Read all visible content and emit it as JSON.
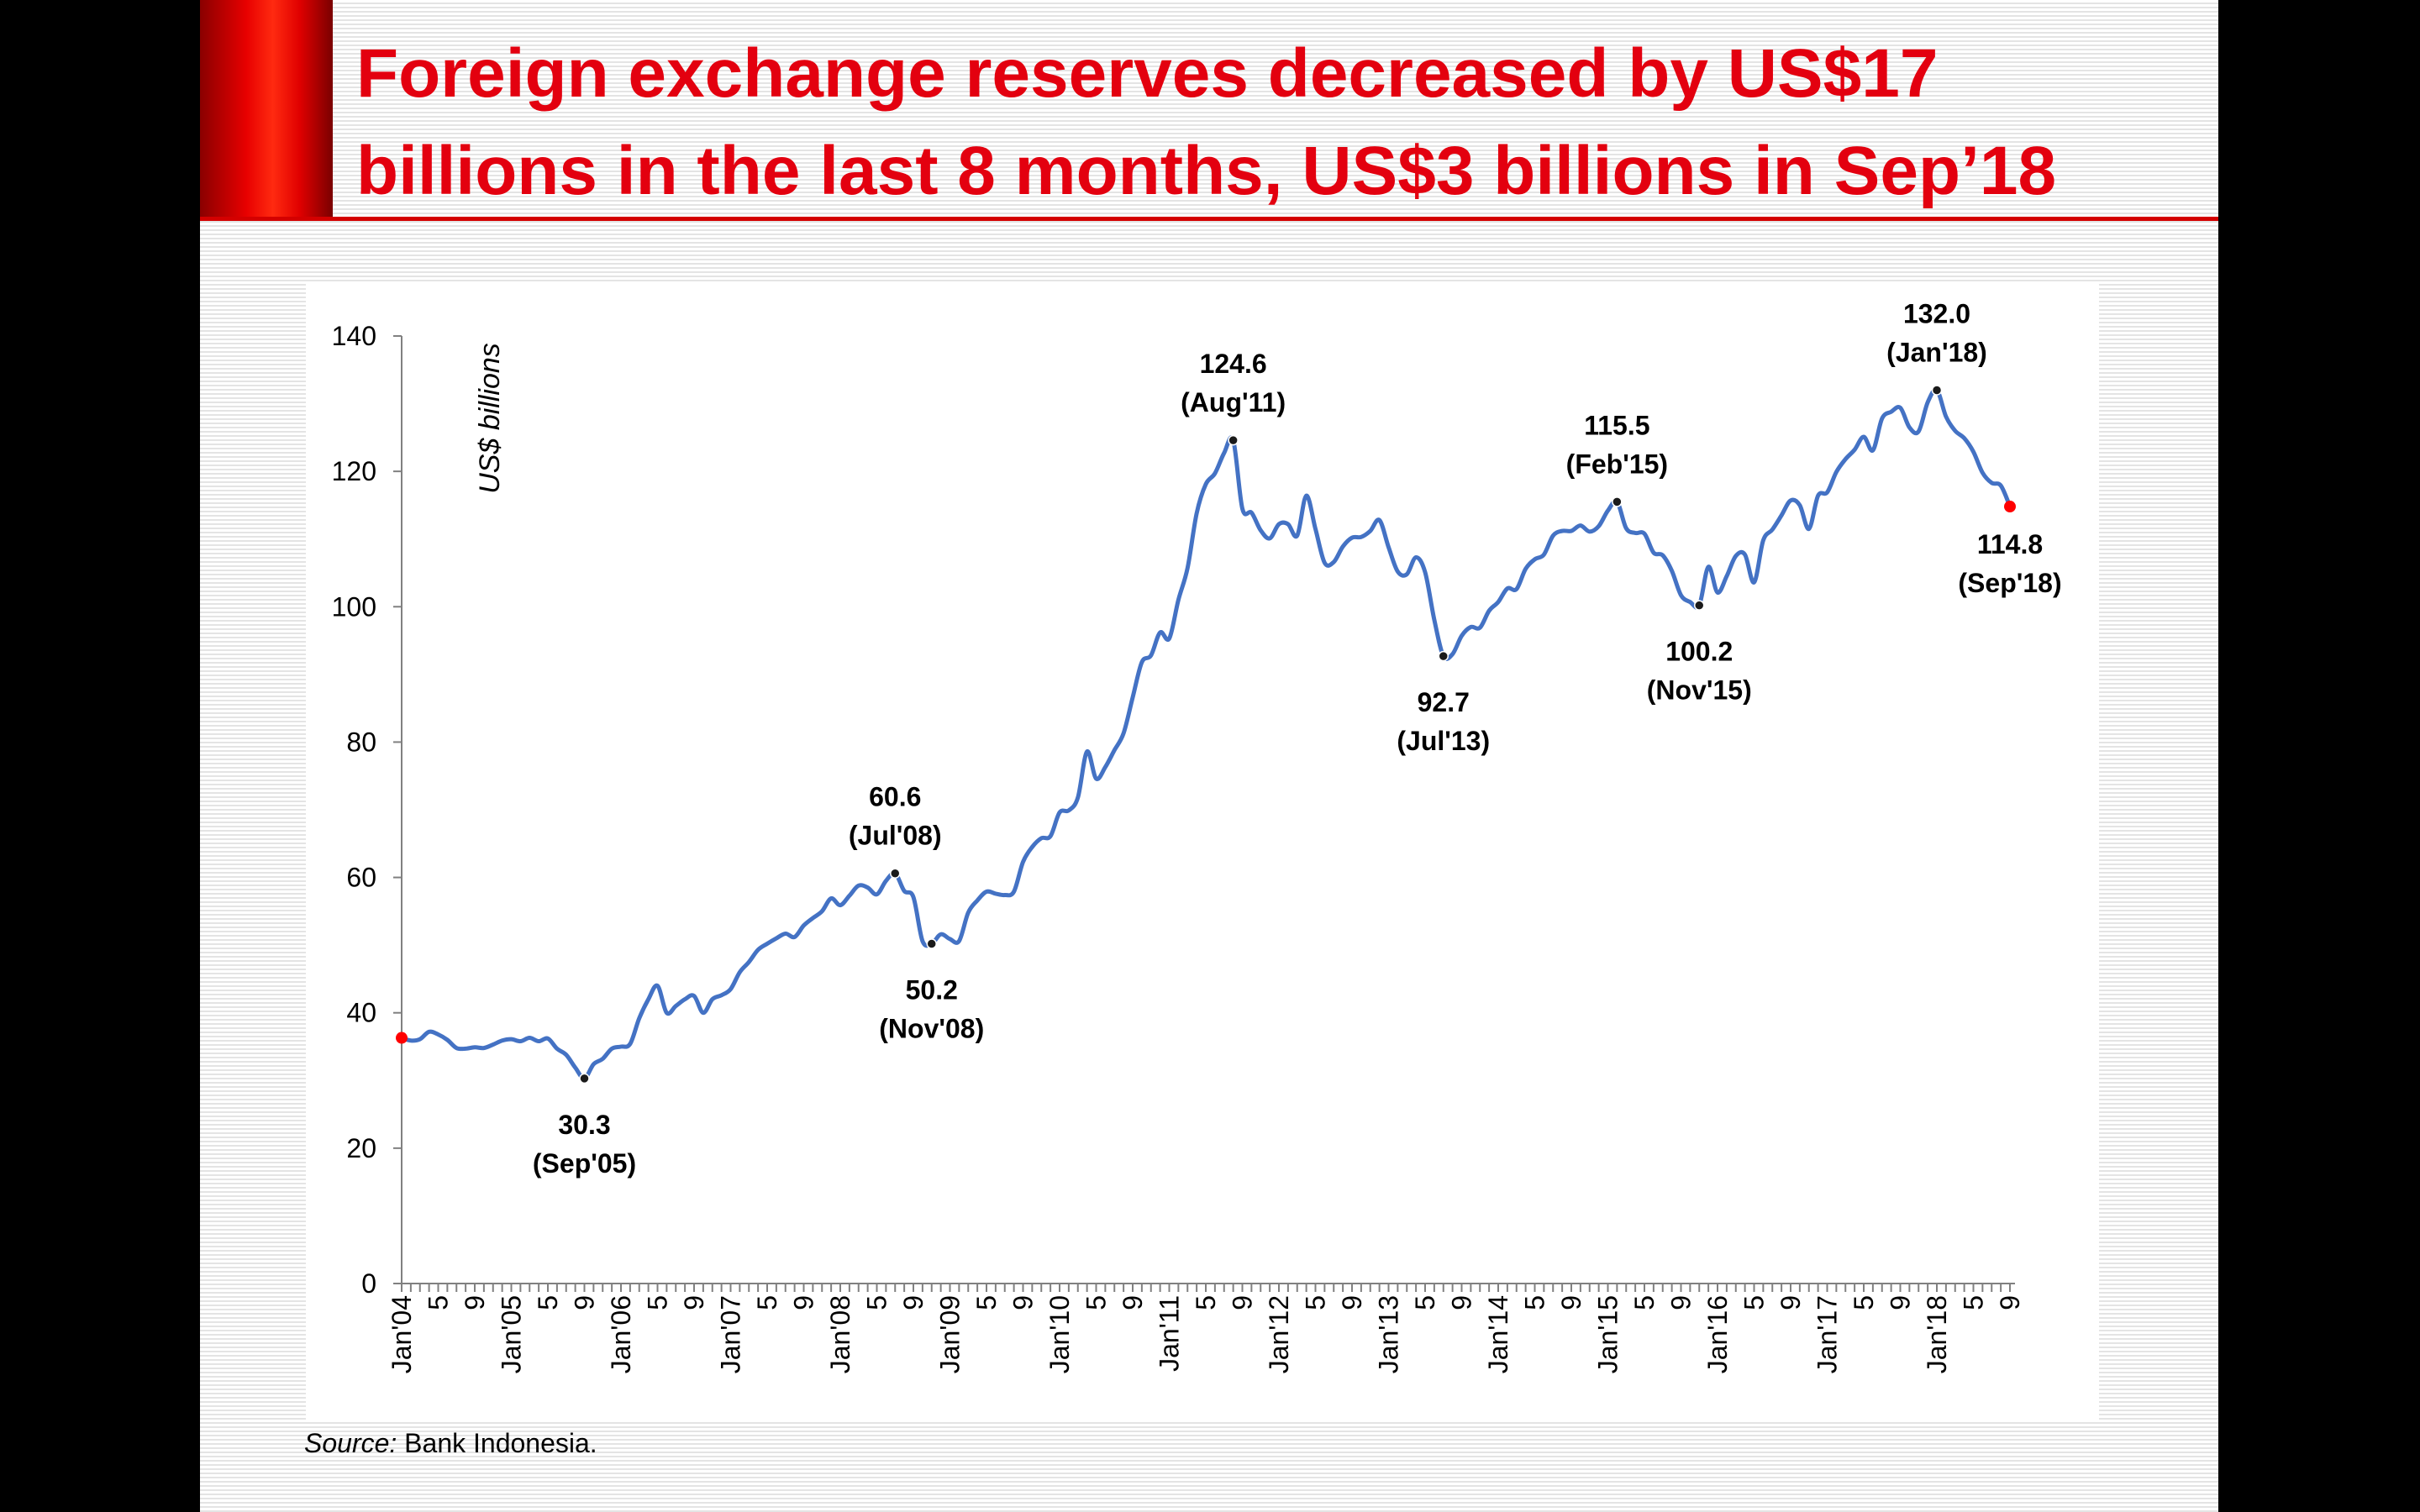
{
  "slide": {
    "title_line1": "Foreign exchange reserves decreased by US$17",
    "title_line2": "billions in the last 8 months, US$3 billions in Sep’18",
    "source_label": "Source:",
    "source_text": " Bank Indonesia."
  },
  "colors": {
    "title": "#e3000f",
    "line": "#4472c4",
    "marker": "#1a1a1a",
    "endpoint": "#ff0000"
  },
  "chart_data": {
    "type": "line",
    "title": "",
    "xlabel": "",
    "ylabel": "US$ billions",
    "ylim": [
      0,
      140
    ],
    "yticks": [
      0,
      20,
      40,
      60,
      80,
      100,
      120,
      140
    ],
    "start": "2004-01",
    "end": "2018-09",
    "x_tick_labels": [
      "Jan'04",
      "5",
      "9",
      "Jan'05",
      "5",
      "9",
      "Jan'06",
      "5",
      "9",
      "Jan'07",
      "5",
      "9",
      "Jan'08",
      "5",
      "9",
      "Jan'09",
      "5",
      "9",
      "Jan'10",
      "5",
      "9",
      "Jan'11",
      "5",
      "9",
      "Jan'12",
      "5",
      "9",
      "Jan'13",
      "5",
      "9",
      "Jan'14",
      "5",
      "9",
      "Jan'15",
      "5",
      "9",
      "Jan'16",
      "5",
      "9",
      "Jan'17",
      "5",
      "9",
      "Jan'18",
      "5",
      "9"
    ],
    "series": [
      {
        "name": "Foreign exchange reserves",
        "x": [
          "2004-01",
          "2004-02",
          "2004-03",
          "2004-04",
          "2004-05",
          "2004-06",
          "2004-07",
          "2004-08",
          "2004-09",
          "2004-10",
          "2004-11",
          "2004-12",
          "2005-01",
          "2005-02",
          "2005-03",
          "2005-04",
          "2005-05",
          "2005-06",
          "2005-07",
          "2005-08",
          "2005-09",
          "2005-10",
          "2005-11",
          "2005-12",
          "2006-01",
          "2006-02",
          "2006-03",
          "2006-04",
          "2006-05",
          "2006-06",
          "2006-07",
          "2006-08",
          "2006-09",
          "2006-10",
          "2006-11",
          "2006-12",
          "2007-01",
          "2007-02",
          "2007-03",
          "2007-04",
          "2007-05",
          "2007-06",
          "2007-07",
          "2007-08",
          "2007-09",
          "2007-10",
          "2007-11",
          "2007-12",
          "2008-01",
          "2008-02",
          "2008-03",
          "2008-04",
          "2008-05",
          "2008-06",
          "2008-07",
          "2008-08",
          "2008-09",
          "2008-10",
          "2008-11",
          "2008-12",
          "2009-01",
          "2009-02",
          "2009-03",
          "2009-04",
          "2009-05",
          "2009-06",
          "2009-07",
          "2009-08",
          "2009-09",
          "2009-10",
          "2009-11",
          "2009-12",
          "2010-01",
          "2010-02",
          "2010-03",
          "2010-04",
          "2010-05",
          "2010-06",
          "2010-07",
          "2010-08",
          "2010-09",
          "2010-10",
          "2010-11",
          "2010-12",
          "2011-01",
          "2011-02",
          "2011-03",
          "2011-04",
          "2011-05",
          "2011-06",
          "2011-07",
          "2011-08",
          "2011-09",
          "2011-10",
          "2011-11",
          "2011-12",
          "2012-01",
          "2012-02",
          "2012-03",
          "2012-04",
          "2012-05",
          "2012-06",
          "2012-07",
          "2012-08",
          "2012-09",
          "2012-10",
          "2012-11",
          "2012-12",
          "2013-01",
          "2013-02",
          "2013-03",
          "2013-04",
          "2013-05",
          "2013-06",
          "2013-07",
          "2013-08",
          "2013-09",
          "2013-10",
          "2013-11",
          "2013-12",
          "2014-01",
          "2014-02",
          "2014-03",
          "2014-04",
          "2014-05",
          "2014-06",
          "2014-07",
          "2014-08",
          "2014-09",
          "2014-10",
          "2014-11",
          "2014-12",
          "2015-01",
          "2015-02",
          "2015-03",
          "2015-04",
          "2015-05",
          "2015-06",
          "2015-07",
          "2015-08",
          "2015-09",
          "2015-10",
          "2015-11",
          "2015-12",
          "2016-01",
          "2016-02",
          "2016-03",
          "2016-04",
          "2016-05",
          "2016-06",
          "2016-07",
          "2016-08",
          "2016-09",
          "2016-10",
          "2016-11",
          "2016-12",
          "2017-01",
          "2017-02",
          "2017-03",
          "2017-04",
          "2017-05",
          "2017-06",
          "2017-07",
          "2017-08",
          "2017-09",
          "2017-10",
          "2017-11",
          "2017-12",
          "2018-01",
          "2018-02",
          "2018-03",
          "2018-04",
          "2018-05",
          "2018-06",
          "2018-07",
          "2018-08",
          "2018-09"
        ],
        "values": [
          36.3,
          35.9,
          36.1,
          37.2,
          36.8,
          36.0,
          34.8,
          34.7,
          34.9,
          34.8,
          35.3,
          35.9,
          36.1,
          35.8,
          36.3,
          35.8,
          36.2,
          34.7,
          33.8,
          31.9,
          30.3,
          32.4,
          33.2,
          34.7,
          35.0,
          35.4,
          39.2,
          42.0,
          44.0,
          40.0,
          41.0,
          42.0,
          42.5,
          40.0,
          42.0,
          42.6,
          43.5,
          46.0,
          47.5,
          49.3,
          50.2,
          51.0,
          51.7,
          51.2,
          52.9,
          54.0,
          55.0,
          56.9,
          55.9,
          57.3,
          58.8,
          58.5,
          57.5,
          59.5,
          60.6,
          58.0,
          57.1,
          50.6,
          50.2,
          51.6,
          50.9,
          50.6,
          54.8,
          56.6,
          57.9,
          57.6,
          57.4,
          57.9,
          62.3,
          64.5,
          65.8,
          66.1,
          69.6,
          69.9,
          71.8,
          78.6,
          74.6,
          76.3,
          78.8,
          81.3,
          86.6,
          91.8,
          92.8,
          96.2,
          95.3,
          101.0,
          105.7,
          113.8,
          118.1,
          119.7,
          122.7,
          124.6,
          114.5,
          113.9,
          111.3,
          110.1,
          112.2,
          112.2,
          110.5,
          116.4,
          111.5,
          106.5,
          106.6,
          108.9,
          110.2,
          110.3,
          111.2,
          112.8,
          108.8,
          105.2,
          104.8,
          107.3,
          105.1,
          98.1,
          92.7,
          93.0,
          95.7,
          97.0,
          96.9,
          99.4,
          100.7,
          102.7,
          102.6,
          105.6,
          107.0,
          107.7,
          110.5,
          111.2,
          111.2,
          112.0,
          111.1,
          111.9,
          114.2,
          115.5,
          111.6,
          110.9,
          110.8,
          108.0,
          107.6,
          105.3,
          101.7,
          100.7,
          100.2,
          105.9,
          102.1,
          104.5,
          107.5,
          107.7,
          103.6,
          109.8,
          111.4,
          113.5,
          115.7,
          115.0,
          111.5,
          116.4,
          116.9,
          119.9,
          121.8,
          123.2,
          125.1,
          123.1,
          127.8,
          128.8,
          129.4,
          126.5,
          125.9,
          130.2,
          132.0,
          128.1,
          126.0,
          124.9,
          122.9,
          119.8,
          118.3,
          117.9,
          114.8
        ]
      }
    ],
    "annotations": [
      {
        "x": "2005-09",
        "value": "30.3",
        "label": "(Sep'05)",
        "placement": "below"
      },
      {
        "x": "2008-07",
        "value": "60.6",
        "label": "(Jul'08)",
        "placement": "above"
      },
      {
        "x": "2008-11",
        "value": "50.2",
        "label": "(Nov'08)",
        "placement": "below"
      },
      {
        "x": "2011-08",
        "value": "124.6",
        "label": "(Aug'11)",
        "placement": "above"
      },
      {
        "x": "2013-07",
        "value": "92.7",
        "label": "(Jul'13)",
        "placement": "below"
      },
      {
        "x": "2015-02",
        "value": "115.5",
        "label": "(Feb'15)",
        "placement": "above"
      },
      {
        "x": "2015-11",
        "value": "100.2",
        "label": "(Nov'15)",
        "placement": "below"
      },
      {
        "x": "2018-01",
        "value": "132.0",
        "label": "(Jan'18)",
        "placement": "above"
      },
      {
        "x": "2018-09",
        "value": "114.8",
        "label": "(Sep'18)",
        "placement": "below"
      }
    ],
    "highlighted_points": [
      "2004-01",
      "2018-09"
    ]
  }
}
